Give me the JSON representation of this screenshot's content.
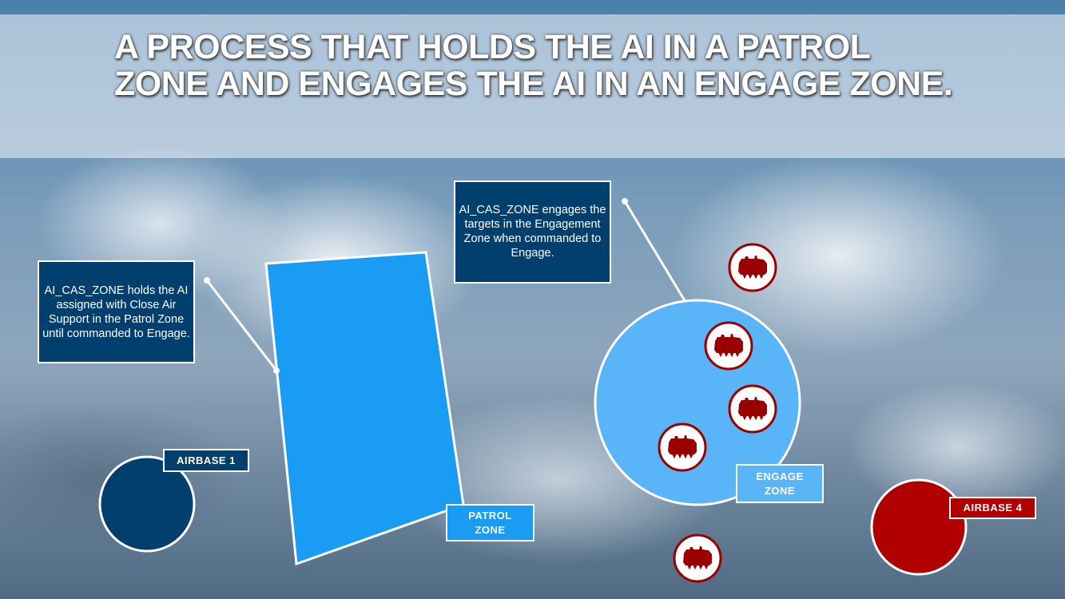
{
  "title": "A PROCESS THAT HOLDS THE AI IN A PATROL ZONE AND ENGAGES THE AI IN AN ENGAGE ZONE.",
  "callouts": {
    "patrol": "AI_CAS_ZONE holds the AI assigned with Close Air Support in the Patrol Zone until commanded to Engage.",
    "engage": "AI_CAS_ZONE engages the targets in the Engagement Zone when commanded to Engage."
  },
  "labels": {
    "patrol_zone": "PATROL ZONE",
    "engage_zone": "ENGAGE ZONE",
    "airbase_1": "AIRBASE 1",
    "airbase_4": "AIRBASE 4"
  },
  "colors": {
    "dark_blue": "#003f6e",
    "patrol": "#1a9cf5",
    "engage": "#5ab4f8",
    "red": "#b00000",
    "target_red": "#9a0000"
  },
  "icons": {
    "target": "armored-vehicle-icon"
  }
}
